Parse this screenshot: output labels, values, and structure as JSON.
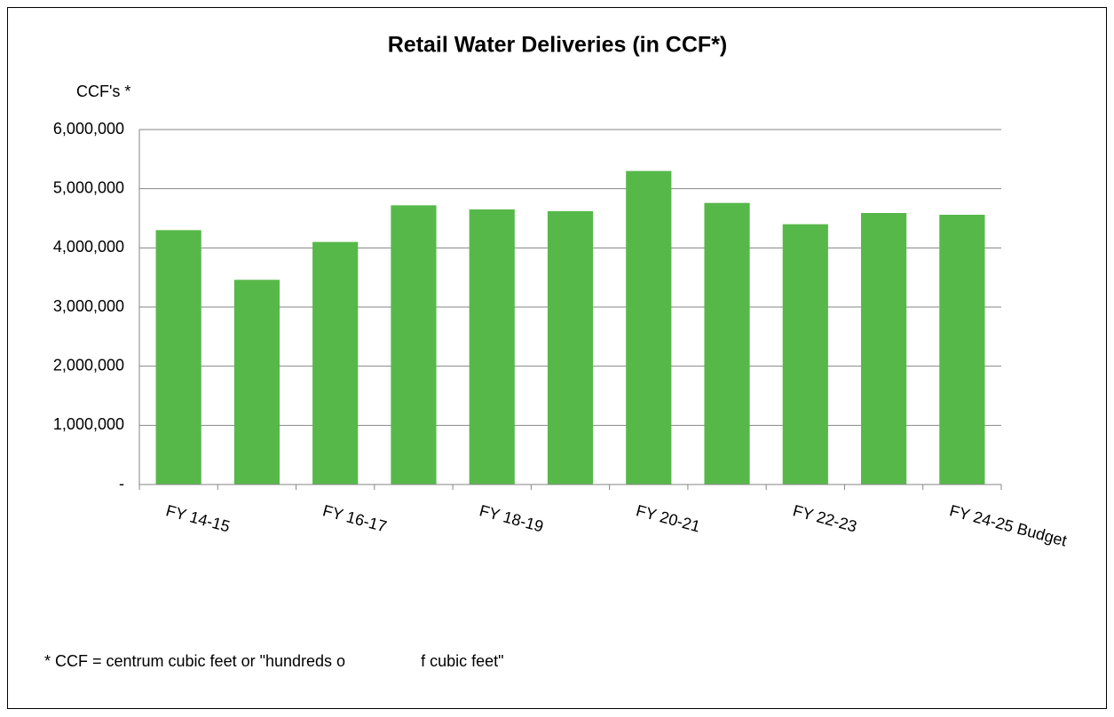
{
  "chart_data": {
    "type": "bar",
    "title": "Retail Water Deliveries (in CCF*)",
    "y_label": "CCF's *",
    "footnote": "* CCF = centrum cubic feet or \"hundreds o                 f cubic feet\"",
    "categories": [
      "FY 14-15",
      null,
      "FY 16-17",
      null,
      "FY 18-19",
      null,
      "FY 20-21",
      null,
      "FY 22-23",
      null,
      "FY 24-25 Budget"
    ],
    "values": [
      4300000,
      3460000,
      4100000,
      4720000,
      4650000,
      4620000,
      5300000,
      4760000,
      4400000,
      4590000,
      4560000
    ],
    "color": "#57b84a",
    "ylim": [
      0,
      6000000
    ],
    "yticks": [
      {
        "value": 0,
        "label": "-"
      },
      {
        "value": 1000000,
        "label": "1,000,000"
      },
      {
        "value": 2000000,
        "label": "2,000,000"
      },
      {
        "value": 3000000,
        "label": "3,000,000"
      },
      {
        "value": 4000000,
        "label": "4,000,000"
      },
      {
        "value": 5000000,
        "label": "5,000,000"
      },
      {
        "value": 6000000,
        "label": "6,000,000"
      }
    ],
    "grid": true
  }
}
